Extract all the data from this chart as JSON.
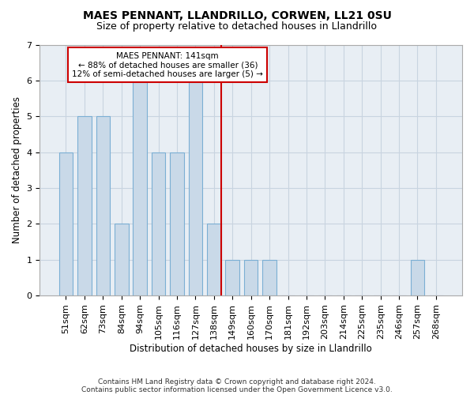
{
  "title": "MAES PENNANT, LLANDRILLO, CORWEN, LL21 0SU",
  "subtitle": "Size of property relative to detached houses in Llandrillo",
  "xlabel": "Distribution of detached houses by size in Llandrillo",
  "ylabel": "Number of detached properties",
  "footnote1": "Contains HM Land Registry data © Crown copyright and database right 2024.",
  "footnote2": "Contains public sector information licensed under the Open Government Licence v3.0.",
  "bar_labels": [
    "51sqm",
    "62sqm",
    "73sqm",
    "84sqm",
    "94sqm",
    "105sqm",
    "116sqm",
    "127sqm",
    "138sqm",
    "149sqm",
    "160sqm",
    "170sqm",
    "181sqm",
    "192sqm",
    "203sqm",
    "214sqm",
    "225sqm",
    "235sqm",
    "246sqm",
    "257sqm",
    "268sqm"
  ],
  "bar_heights": [
    4,
    5,
    5,
    2,
    6,
    4,
    4,
    6,
    2,
    1,
    1,
    1,
    0,
    0,
    0,
    0,
    0,
    0,
    0,
    1,
    0
  ],
  "bar_color": "#c9d9e8",
  "bar_edge_color": "#7bafd4",
  "highlight_bar_index": 8,
  "highlight_color": "#cc0000",
  "annotation_title": "MAES PENNANT: 141sqm",
  "annotation_line1": "← 88% of detached houses are smaller (36)",
  "annotation_line2": "12% of semi-detached houses are larger (5) →",
  "annotation_box_color": "#cc0000",
  "ylim": [
    0,
    7
  ],
  "yticks": [
    0,
    1,
    2,
    3,
    4,
    5,
    6,
    7
  ],
  "grid_color": "#c8d4e0",
  "bg_color": "#e8eef4",
  "title_fontsize": 10,
  "subtitle_fontsize": 9,
  "axis_label_fontsize": 8.5,
  "tick_fontsize": 8
}
